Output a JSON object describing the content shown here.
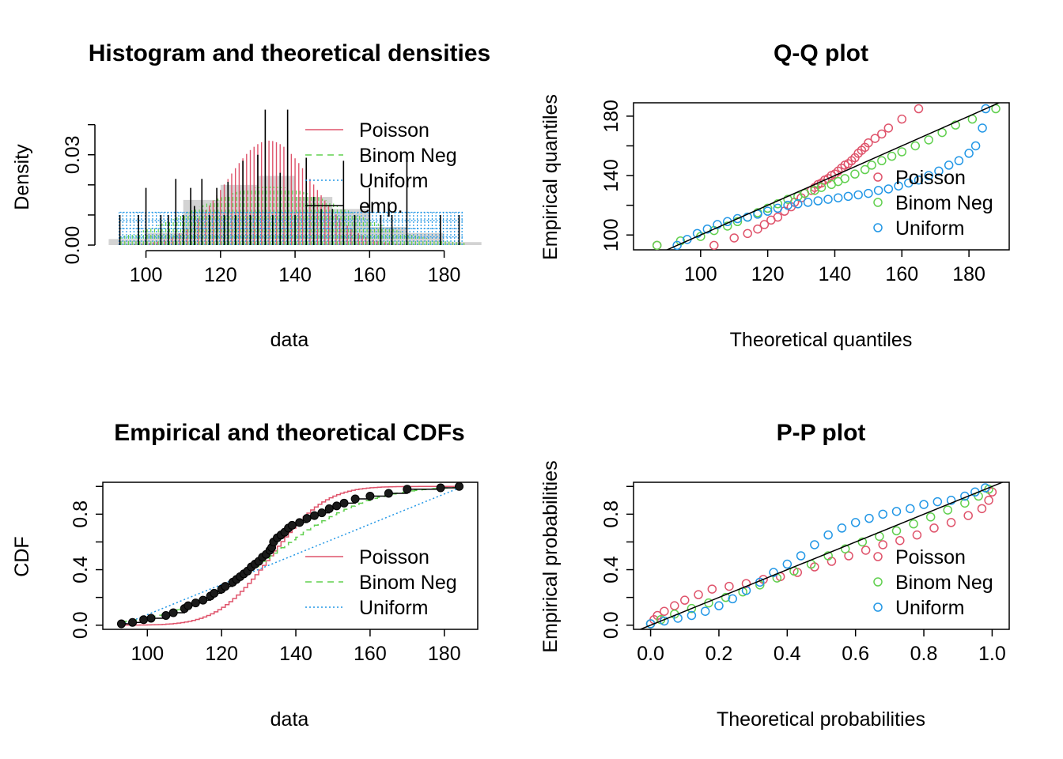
{
  "colors": {
    "poisson": "#DF536B",
    "nbinom": "#61D04F",
    "uniform": "#2297E6",
    "emp": "#000000",
    "hist": "#D3D3D3"
  },
  "panels": {
    "hist": {
      "title": "Histogram and theoretical densities",
      "xlabel": "data",
      "ylabel": "Density",
      "xticks": [
        "100",
        "120",
        "140",
        "160",
        "180"
      ],
      "yticks": [
        "0.00",
        "0.03"
      ]
    },
    "qq": {
      "title": "Q-Q plot",
      "xlabel": "Theoretical quantiles",
      "ylabel": "Empirical quantiles",
      "xticks": [
        "100",
        "120",
        "140",
        "160",
        "180"
      ],
      "yticks": [
        "100",
        "140",
        "180"
      ]
    },
    "cdf": {
      "title": "Empirical and theoretical CDFs",
      "xlabel": "data",
      "ylabel": "CDF",
      "xticks": [
        "100",
        "120",
        "140",
        "160",
        "180"
      ],
      "yticks": [
        "0.0",
        "0.4",
        "0.8"
      ]
    },
    "pp": {
      "title": "P-P plot",
      "xlabel": "Theoretical probabilities",
      "ylabel": "Empirical probabilities",
      "xticks": [
        "0.0",
        "0.2",
        "0.4",
        "0.6",
        "0.8",
        "1.0"
      ],
      "yticks": [
        "0.0",
        "0.4",
        "0.8"
      ]
    }
  },
  "legend_hist": [
    "Poisson",
    "Binom Neg",
    "Uniform",
    "emp."
  ],
  "legend_other": [
    "Poisson",
    "Binom Neg",
    "Uniform"
  ],
  "chart_data": [
    {
      "type": "bar",
      "title": "Histogram and theoretical densities",
      "xlabel": "data",
      "ylabel": "Density",
      "xlim": [
        88,
        189
      ],
      "ylim": [
        0,
        0.047
      ],
      "histogram": {
        "bins": [
          [
            90,
            100
          ],
          [
            100,
            110
          ],
          [
            110,
            120
          ],
          [
            120,
            130
          ],
          [
            130,
            140
          ],
          [
            140,
            150
          ],
          [
            150,
            160
          ],
          [
            160,
            170
          ],
          [
            170,
            180
          ],
          [
            180,
            190
          ]
        ],
        "density": [
          0.002,
          0.004,
          0.015,
          0.02,
          0.023,
          0.016,
          0.012,
          0.006,
          0.004,
          0.001
        ]
      },
      "series": [
        {
          "name": "Poisson",
          "kind": "density",
          "mean": 133,
          "sd": 11.5
        },
        {
          "name": "Binom Neg",
          "kind": "density",
          "mean": 133,
          "sd": 20.5
        },
        {
          "name": "Uniform",
          "kind": "density",
          "min": 93,
          "max": 185,
          "value": 0.0109
        },
        {
          "name": "emp.",
          "kind": "spikes",
          "x": [
            93,
            98,
            100,
            104,
            106,
            108,
            110,
            112,
            113,
            115,
            117,
            119,
            121,
            122,
            124,
            126,
            128,
            130,
            132,
            134,
            136,
            138,
            140,
            143,
            145,
            147,
            150,
            153,
            156,
            160,
            163,
            166,
            170,
            179,
            184
          ],
          "values": [
            0.01,
            0.01,
            0.019,
            0.01,
            0.01,
            0.022,
            0.01,
            0.019,
            0.013,
            0.022,
            0.01,
            0.019,
            0.01,
            0.021,
            0.01,
            0.028,
            0.01,
            0.03,
            0.045,
            0.01,
            0.024,
            0.045,
            0.01,
            0.029,
            0.016,
            0.012,
            0.012,
            0.028,
            0.01,
            0.019,
            0.01,
            0.01,
            0.029,
            0.01,
            0.01
          ]
        }
      ]
    },
    {
      "type": "scatter",
      "title": "Q-Q plot",
      "xlabel": "Theoretical quantiles",
      "ylabel": "Empirical quantiles",
      "xlim": [
        80,
        192
      ],
      "ylim": [
        90,
        189
      ],
      "reference_line": [
        [
          80,
          80
        ],
        [
          192,
          192
        ]
      ],
      "series": [
        {
          "name": "Poisson",
          "points": [
            [
              87,
              93
            ],
            [
              104,
              93
            ],
            [
              110,
              98
            ],
            [
              114,
              101
            ],
            [
              117,
              104
            ],
            [
              119,
              107
            ],
            [
              121,
              110
            ],
            [
              123,
              112
            ],
            [
              125,
              116
            ],
            [
              127,
              119
            ],
            [
              128,
              122
            ],
            [
              130,
              125
            ],
            [
              131,
              128
            ],
            [
              133,
              130
            ],
            [
              134,
              132
            ],
            [
              135,
              134
            ],
            [
              136,
              135
            ],
            [
              137,
              137
            ],
            [
              138,
              138
            ],
            [
              139,
              140
            ],
            [
              140,
              141
            ],
            [
              141,
              143
            ],
            [
              142,
              145
            ],
            [
              143,
              147
            ],
            [
              144,
              148
            ],
            [
              145,
              150
            ],
            [
              146,
              152
            ],
            [
              147,
              155
            ],
            [
              148,
              157
            ],
            [
              149,
              159
            ],
            [
              150,
              162
            ],
            [
              152,
              165
            ],
            [
              154,
              168
            ],
            [
              156,
              172
            ],
            [
              160,
              178
            ],
            [
              165,
              185
            ]
          ]
        },
        {
          "name": "Binom Neg",
          "points": [
            [
              87,
              93
            ],
            [
              94,
              96
            ],
            [
              100,
              99
            ],
            [
              104,
              103
            ],
            [
              108,
              106
            ],
            [
              111,
              109
            ],
            [
              114,
              112
            ],
            [
              117,
              115
            ],
            [
              120,
              118
            ],
            [
              123,
              121
            ],
            [
              126,
              124
            ],
            [
              129,
              126
            ],
            [
              131,
              128
            ],
            [
              134,
              130
            ],
            [
              136,
              132
            ],
            [
              139,
              134
            ],
            [
              141,
              136
            ],
            [
              143,
              138
            ],
            [
              146,
              141
            ],
            [
              149,
              144
            ],
            [
              151,
              147
            ],
            [
              154,
              150
            ],
            [
              157,
              153
            ],
            [
              160,
              156
            ],
            [
              164,
              160
            ],
            [
              168,
              164
            ],
            [
              172,
              169
            ],
            [
              176,
              174
            ],
            [
              181,
              178
            ],
            [
              188,
              185
            ]
          ]
        },
        {
          "name": "Uniform",
          "points": [
            [
              93,
              93
            ],
            [
              96,
              97
            ],
            [
              99,
              101
            ],
            [
              102,
              104
            ],
            [
              105,
              107
            ],
            [
              108,
              109
            ],
            [
              111,
              111
            ],
            [
              114,
              112
            ],
            [
              117,
              114
            ],
            [
              120,
              116
            ],
            [
              123,
              118
            ],
            [
              126,
              120
            ],
            [
              129,
              121
            ],
            [
              132,
              122
            ],
            [
              135,
              123
            ],
            [
              138,
              124
            ],
            [
              141,
              125
            ],
            [
              144,
              126
            ],
            [
              147,
              127
            ],
            [
              150,
              128
            ],
            [
              153,
              130
            ],
            [
              156,
              131
            ],
            [
              159,
              133
            ],
            [
              162,
              135
            ],
            [
              165,
              137
            ],
            [
              168,
              140
            ],
            [
              171,
              143
            ],
            [
              174,
              147
            ],
            [
              177,
              150
            ],
            [
              180,
              155
            ],
            [
              182,
              160
            ],
            [
              184,
              172
            ],
            [
              185,
              185
            ]
          ]
        }
      ]
    },
    {
      "type": "line",
      "title": "Empirical and theoretical CDFs",
      "xlabel": "data",
      "ylabel": "CDF",
      "xlim": [
        88,
        189
      ],
      "ylim": [
        -0.03,
        1.03
      ],
      "series": [
        {
          "name": "Poisson",
          "kind": "cdf",
          "mean": 133,
          "sd": 11.5
        },
        {
          "name": "Binom Neg",
          "kind": "cdf",
          "mean": 133,
          "sd": 20.5
        },
        {
          "name": "Uniform",
          "kind": "cdf",
          "min": 93,
          "max": 185
        },
        {
          "name": "emp.",
          "kind": "ecdf",
          "x": [
            93,
            96,
            99,
            101,
            105,
            107,
            110,
            111,
            113,
            115,
            117,
            118,
            120,
            121,
            123,
            124,
            125,
            126,
            127,
            128,
            129,
            130,
            131,
            132,
            133,
            133.5,
            134,
            135,
            136,
            137,
            138,
            139,
            141,
            143,
            145,
            147,
            149,
            151,
            153,
            156,
            160,
            165,
            170,
            179,
            184
          ],
          "values": [
            0.01,
            0.02,
            0.04,
            0.05,
            0.07,
            0.09,
            0.12,
            0.14,
            0.16,
            0.18,
            0.21,
            0.23,
            0.26,
            0.28,
            0.31,
            0.33,
            0.35,
            0.37,
            0.39,
            0.42,
            0.44,
            0.46,
            0.49,
            0.51,
            0.54,
            0.56,
            0.6,
            0.63,
            0.65,
            0.67,
            0.7,
            0.72,
            0.74,
            0.77,
            0.79,
            0.81,
            0.84,
            0.86,
            0.88,
            0.91,
            0.93,
            0.95,
            0.98,
            0.99,
            1.0
          ]
        }
      ]
    },
    {
      "type": "scatter",
      "title": "P-P plot",
      "xlabel": "Theoretical probabilities",
      "ylabel": "Empirical probabilities",
      "xlim": [
        -0.05,
        1.05
      ],
      "ylim": [
        -0.03,
        1.03
      ],
      "reference_line": [
        [
          -0.05,
          -0.05
        ],
        [
          1.05,
          1.05
        ]
      ],
      "series": [
        {
          "name": "Poisson",
          "points": [
            [
              0.0,
              0.01
            ],
            [
              0.01,
              0.04
            ],
            [
              0.02,
              0.07
            ],
            [
              0.04,
              0.1
            ],
            [
              0.07,
              0.14
            ],
            [
              0.1,
              0.18
            ],
            [
              0.14,
              0.22
            ],
            [
              0.18,
              0.26
            ],
            [
              0.23,
              0.28
            ],
            [
              0.28,
              0.3
            ],
            [
              0.33,
              0.33
            ],
            [
              0.38,
              0.35
            ],
            [
              0.43,
              0.38
            ],
            [
              0.48,
              0.42
            ],
            [
              0.53,
              0.46
            ],
            [
              0.58,
              0.5
            ],
            [
              0.63,
              0.54
            ],
            [
              0.68,
              0.58
            ],
            [
              0.73,
              0.61
            ],
            [
              0.78,
              0.65
            ],
            [
              0.83,
              0.7
            ],
            [
              0.88,
              0.74
            ],
            [
              0.93,
              0.79
            ],
            [
              0.97,
              0.84
            ],
            [
              0.99,
              0.9
            ],
            [
              1.0,
              0.96
            ]
          ]
        },
        {
          "name": "Binom Neg",
          "points": [
            [
              0.0,
              0.01
            ],
            [
              0.03,
              0.04
            ],
            [
              0.07,
              0.08
            ],
            [
              0.12,
              0.12
            ],
            [
              0.17,
              0.16
            ],
            [
              0.22,
              0.2
            ],
            [
              0.27,
              0.24
            ],
            [
              0.32,
              0.29
            ],
            [
              0.37,
              0.34
            ],
            [
              0.42,
              0.39
            ],
            [
              0.47,
              0.44
            ],
            [
              0.52,
              0.5
            ],
            [
              0.57,
              0.55
            ],
            [
              0.62,
              0.6
            ],
            [
              0.67,
              0.64
            ],
            [
              0.72,
              0.68
            ],
            [
              0.77,
              0.73
            ],
            [
              0.82,
              0.78
            ],
            [
              0.87,
              0.83
            ],
            [
              0.92,
              0.88
            ],
            [
              0.96,
              0.93
            ],
            [
              0.99,
              0.98
            ]
          ]
        },
        {
          "name": "Uniform",
          "points": [
            [
              0.0,
              0.01
            ],
            [
              0.04,
              0.03
            ],
            [
              0.08,
              0.05
            ],
            [
              0.12,
              0.07
            ],
            [
              0.16,
              0.1
            ],
            [
              0.2,
              0.14
            ],
            [
              0.24,
              0.19
            ],
            [
              0.28,
              0.25
            ],
            [
              0.32,
              0.31
            ],
            [
              0.36,
              0.38
            ],
            [
              0.4,
              0.44
            ],
            [
              0.44,
              0.5
            ],
            [
              0.48,
              0.58
            ],
            [
              0.52,
              0.65
            ],
            [
              0.56,
              0.7
            ],
            [
              0.6,
              0.74
            ],
            [
              0.64,
              0.77
            ],
            [
              0.68,
              0.8
            ],
            [
              0.72,
              0.82
            ],
            [
              0.76,
              0.84
            ],
            [
              0.8,
              0.87
            ],
            [
              0.84,
              0.89
            ],
            [
              0.88,
              0.9
            ],
            [
              0.92,
              0.93
            ],
            [
              0.95,
              0.96
            ],
            [
              0.98,
              0.99
            ]
          ]
        }
      ]
    }
  ]
}
